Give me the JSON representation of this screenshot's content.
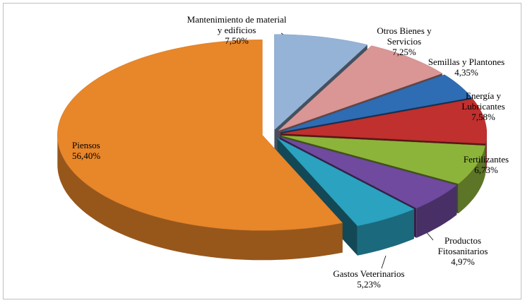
{
  "chart_data": {
    "type": "pie3d",
    "categories": [
      "Mantenimiento de material y edificios",
      "Otros Bienes y Servicios",
      "Semillas y Plantones",
      "Energía y Lubricantes",
      "Fertilizantes",
      "Productos Fitosanitarios",
      "Gastos Veterinarios",
      "Piensos"
    ],
    "values": [
      7.5,
      7.25,
      4.35,
      7.58,
      6.73,
      4.97,
      5.23,
      56.4
    ],
    "value_labels": [
      "7,50%",
      "7,25%",
      "4,35%",
      "7,58%",
      "6,73%",
      "4,97%",
      "5,23%",
      "56,40%"
    ],
    "colors": [
      "#95b3d7",
      "#d99694",
      "#2e6db4",
      "#c0302e",
      "#8db43a",
      "#6f4a9e",
      "#2aa2c0",
      "#e8862a"
    ]
  }
}
